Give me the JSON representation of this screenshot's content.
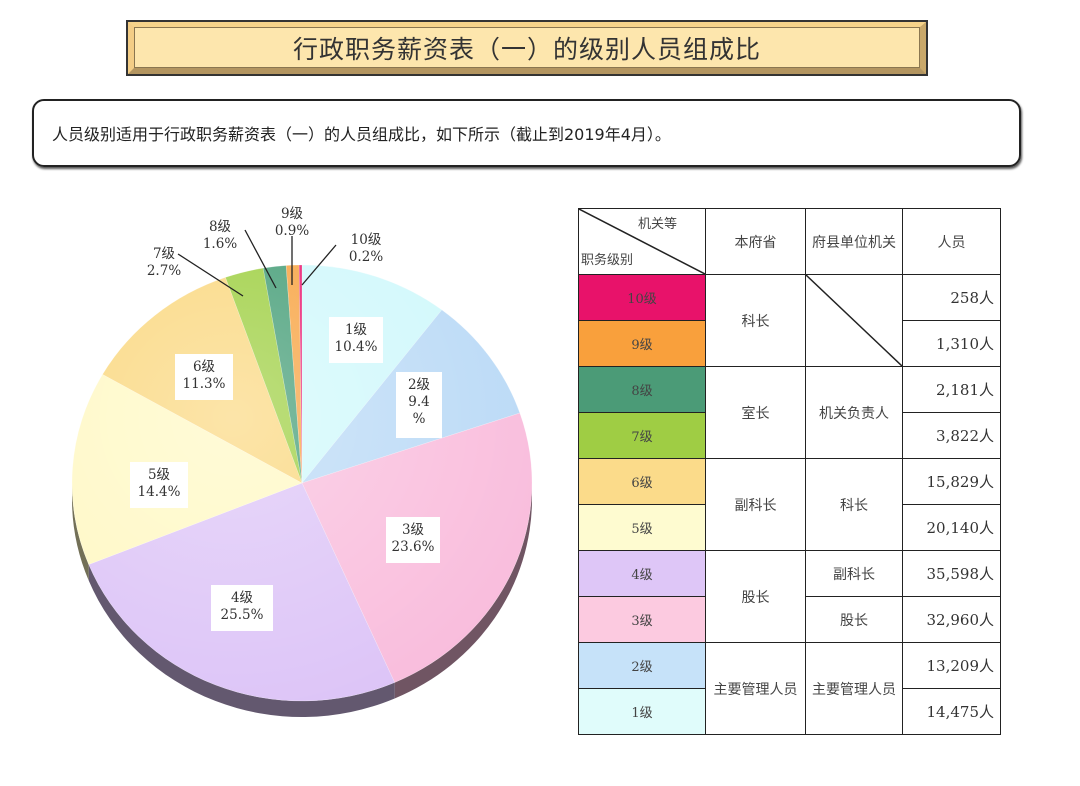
{
  "header": {
    "title": "行政职务薪资表（一）的级别人员组成比",
    "description": "人员级别适用于行政职务薪资表（一）的人员组成比，如下所示（截止到2019年4月）。"
  },
  "chart_data": {
    "type": "pie",
    "title": "行政职务薪资表（一）的级别人员组成比",
    "start": "12 o'clock, clockwise",
    "categories": [
      "1级",
      "2级",
      "3级",
      "4级",
      "5级",
      "6级",
      "7级",
      "8级",
      "9级",
      "10级"
    ],
    "values": [
      10.4,
      9.4,
      23.6,
      25.5,
      14.4,
      11.3,
      2.7,
      1.6,
      0.9,
      0.2
    ],
    "labels": [
      "10.4%",
      "9.4\n%",
      "23.6%",
      "25.5%",
      "14.4%",
      "11.3%",
      "2.7%",
      "1.6%",
      "0.9%",
      "0.2%"
    ],
    "colors": [
      "#cff8fb",
      "#b9d9f6",
      "#f9bcdc",
      "#dcc3f7",
      "#fff8c2",
      "#fad67a",
      "#9acd3a",
      "#3e9a72",
      "#f7a03b",
      "#e8106a"
    ],
    "unit": "%",
    "legend": "none",
    "three_d": true
  },
  "table": {
    "header": {
      "diag_top": "机关等",
      "diag_bottom": "职务级别",
      "col2": "本府省",
      "col3": "府县单位机关",
      "col4": "人员"
    },
    "rows": [
      {
        "level": "10级",
        "color": "#e8126a",
        "count": "258人"
      },
      {
        "level": "9级",
        "color": "#f9a03c",
        "count": "1,310人"
      },
      {
        "level": "8级",
        "color": "#4b9b77",
        "count": "2,181人"
      },
      {
        "level": "7级",
        "color": "#9fcd44",
        "count": "3,822人"
      },
      {
        "level": "6级",
        "color": "#fbdb8a",
        "count": "15,829人"
      },
      {
        "level": "5级",
        "color": "#fefbd0",
        "count": "20,140人"
      },
      {
        "level": "4级",
        "color": "#dec6f7",
        "count": "35,598人"
      },
      {
        "level": "3级",
        "color": "#fccae0",
        "count": "32,960人"
      },
      {
        "level": "2级",
        "color": "#c6e2f9",
        "count": "13,209人"
      },
      {
        "level": "1级",
        "color": "#e0fcfb",
        "count": "14,475人"
      }
    ],
    "groups_col2": [
      "科长",
      "室长",
      "副科长",
      "股长",
      "主要管理人员"
    ],
    "groups_col3": [
      "机关负责人",
      "科长",
      "副科长",
      "股长",
      "主要管理人员"
    ]
  }
}
